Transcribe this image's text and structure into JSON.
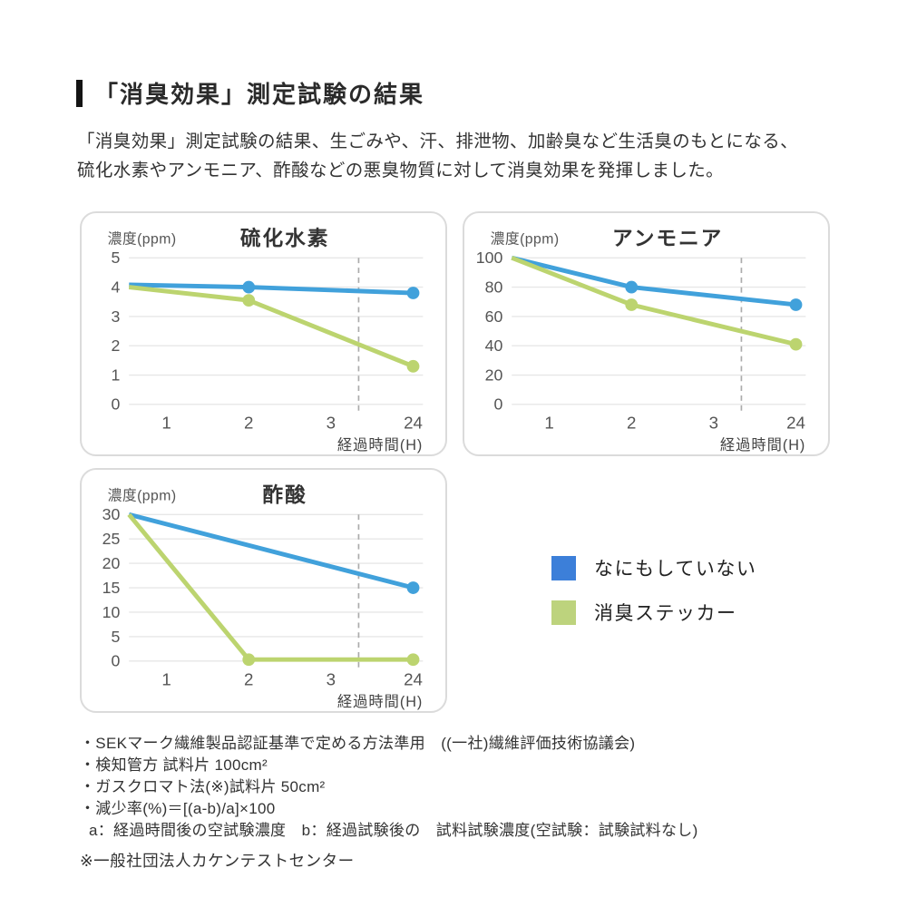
{
  "page": {
    "title": "「消臭効果」測定試験の結果",
    "intro_line1": "「消臭効果」測定試験の結果、生ごみや、汗、排泄物、加齢臭など生活臭のもとになる、",
    "intro_line2": "硫化水素やアンモニア、酢酸などの悪臭物質に対して消臭効果を発揮しました。"
  },
  "colors": {
    "line_blue": "#41A1DB",
    "line_green": "#BCD46F",
    "legend_blue": "#3C7FD9",
    "legend_green": "#BDD37D",
    "grid": "#E7E7E7",
    "dashed": "#ABABAB"
  },
  "legend": {
    "items": [
      {
        "label": "なにもしていない",
        "color": "#3C7FD9"
      },
      {
        "label": "消臭ステッカー",
        "color": "#BDD37D"
      }
    ]
  },
  "chart_data": [
    {
      "type": "line",
      "title": "硫化水素",
      "ylabel": "濃度(ppm)",
      "xlabel": "経過時間(H)",
      "x_ticks": [
        "1",
        "2",
        "3",
        "24"
      ],
      "yticks": [
        0,
        1,
        2,
        3,
        4,
        5
      ],
      "ylim": [
        0,
        5
      ],
      "axis_break_between": [
        "3",
        "24"
      ],
      "series": [
        {
          "name": "なにもしていない",
          "color": "#41A1DB",
          "points": [
            {
              "x": 0,
              "y": 4.08,
              "marker": false
            },
            {
              "x": 2,
              "y": 4.0,
              "marker": true
            },
            {
              "x": 24,
              "y": 3.8,
              "marker": true
            }
          ]
        },
        {
          "name": "消臭ステッカー",
          "color": "#BCD46F",
          "points": [
            {
              "x": 0,
              "y": 4.0,
              "marker": false
            },
            {
              "x": 2,
              "y": 3.55,
              "marker": true
            },
            {
              "x": 24,
              "y": 1.3,
              "marker": true
            }
          ]
        }
      ]
    },
    {
      "type": "line",
      "title": "アンモニア",
      "ylabel": "濃度(ppm)",
      "xlabel": "経過時間(H)",
      "x_ticks": [
        "1",
        "2",
        "3",
        "24"
      ],
      "yticks": [
        0,
        20,
        40,
        60,
        80,
        100
      ],
      "ylim": [
        0,
        100
      ],
      "axis_break_between": [
        "3",
        "24"
      ],
      "series": [
        {
          "name": "なにもしていない",
          "color": "#41A1DB",
          "points": [
            {
              "x": 0,
              "y": 100,
              "marker": false
            },
            {
              "x": 2,
              "y": 80,
              "marker": true
            },
            {
              "x": 24,
              "y": 68,
              "marker": true
            }
          ]
        },
        {
          "name": "消臭ステッカー",
          "color": "#BCD46F",
          "points": [
            {
              "x": 0,
              "y": 100,
              "marker": false
            },
            {
              "x": 2,
              "y": 68,
              "marker": true
            },
            {
              "x": 24,
              "y": 41,
              "marker": true
            }
          ]
        }
      ]
    },
    {
      "type": "line",
      "title": "酢酸",
      "ylabel": "濃度(ppm)",
      "xlabel": "経過時間(H)",
      "x_ticks": [
        "1",
        "2",
        "3",
        "24"
      ],
      "yticks": [
        0,
        5,
        10,
        15,
        20,
        25,
        30
      ],
      "ylim": [
        0,
        30
      ],
      "axis_break_between": [
        "3",
        "24"
      ],
      "series": [
        {
          "name": "なにもしていない",
          "color": "#41A1DB",
          "points": [
            {
              "x": 0,
              "y": 30,
              "marker": false
            },
            {
              "x": 24,
              "y": 15,
              "marker": true
            }
          ]
        },
        {
          "name": "消臭ステッカー",
          "color": "#BCD46F",
          "points": [
            {
              "x": 0,
              "y": 30,
              "marker": false
            },
            {
              "x": 2,
              "y": 0.3,
              "marker": true
            },
            {
              "x": 24,
              "y": 0.3,
              "marker": true
            }
          ]
        }
      ]
    }
  ],
  "footnotes": {
    "lines": [
      {
        "text": "・SEKマーク繊維製品認証基準で定める方法準用　((一社)繊維評価技術協議会)",
        "indent": false
      },
      {
        "text": "・検知管方 試料片 100cm²",
        "indent": false
      },
      {
        "text": "・ガスクロマト法(※)試料片 50cm²",
        "indent": false
      },
      {
        "text": "・減少率(%)＝[(a-b)/a]×100",
        "indent": false
      },
      {
        "text": "a：経過時間後の空試験濃度　b：経過試験後の　試料試験濃度(空試験：試験試料なし)",
        "indent": true
      }
    ],
    "org_note": "※一般社団法人カケンテストセンター"
  }
}
